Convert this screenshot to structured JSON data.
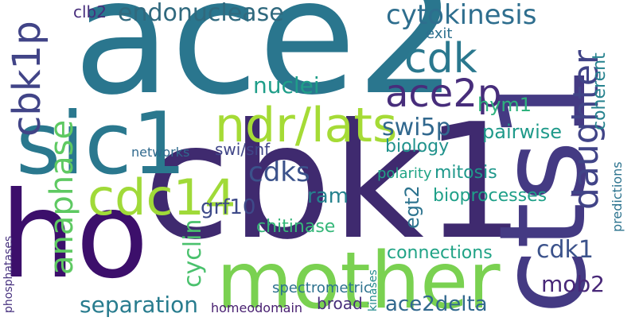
{
  "words": [
    {
      "text": "ace2",
      "color": "#2a768e"
    },
    {
      "text": "cbk1",
      "color": "#3f2a6f"
    },
    {
      "text": "cts1",
      "color": "#443a83"
    },
    {
      "text": "sic1",
      "color": "#2a788e"
    },
    {
      "text": "mother",
      "color": "#7ad151"
    },
    {
      "text": "ho",
      "color": "#3c0f6b"
    },
    {
      "text": "cdc14",
      "color": "#a0da39"
    },
    {
      "text": "ndr/lats",
      "color": "#a5db36"
    },
    {
      "text": "cbk1p",
      "color": "#414487"
    },
    {
      "text": "endonuclease",
      "color": "#30697e"
    },
    {
      "text": "cytokinesis",
      "color": "#2e6e8e"
    },
    {
      "text": "cdk",
      "color": "#2a788e"
    },
    {
      "text": "ace2p",
      "color": "#472d7b"
    },
    {
      "text": "daughter",
      "color": "#414487"
    },
    {
      "text": "swi5p",
      "color": "#31688e"
    },
    {
      "text": "cdks",
      "color": "#3b528b"
    },
    {
      "text": "anaphase",
      "color": "#5ec962"
    },
    {
      "text": "separation",
      "color": "#287c8e"
    },
    {
      "text": "cyclin",
      "color": "#4ac16d"
    },
    {
      "text": "chitinase",
      "color": "#35b779"
    },
    {
      "text": "mitosis",
      "color": "#1f988b"
    },
    {
      "text": "mob2",
      "color": "#482878"
    },
    {
      "text": "cdk1",
      "color": "#3b528b"
    },
    {
      "text": "ace2delta",
      "color": "#31688e"
    },
    {
      "text": "connections",
      "color": "#20a386"
    },
    {
      "text": "hym1",
      "color": "#2db27d"
    },
    {
      "text": "grf10",
      "color": "#3e4a89"
    },
    {
      "text": "bioprocesses",
      "color": "#1fa088"
    },
    {
      "text": "pairwise",
      "color": "#1f9a8a"
    },
    {
      "text": "nuclei",
      "color": "#1f9e89"
    },
    {
      "text": "biology",
      "color": "#20928c"
    },
    {
      "text": "swi/snf",
      "color": "#404688"
    },
    {
      "text": "ram",
      "color": "#26828e"
    },
    {
      "text": "egt2",
      "color": "#2c738e"
    },
    {
      "text": "coherent",
      "color": "#26828e"
    },
    {
      "text": "homeodomain",
      "color": "#481f70"
    },
    {
      "text": "clb2",
      "color": "#472e7c"
    },
    {
      "text": "exit",
      "color": "#2d708e"
    },
    {
      "text": "spectrometric",
      "color": "#2c718e"
    },
    {
      "text": "broad",
      "color": "#472d7b"
    },
    {
      "text": "networks",
      "color": "#306a8e"
    },
    {
      "text": "polarity",
      "color": "#20a486"
    },
    {
      "text": "predictions",
      "color": "#2c738e"
    },
    {
      "text": "kinases",
      "color": "#238a8d"
    },
    {
      "text": "phosphatases",
      "color": "#46307e"
    }
  ]
}
